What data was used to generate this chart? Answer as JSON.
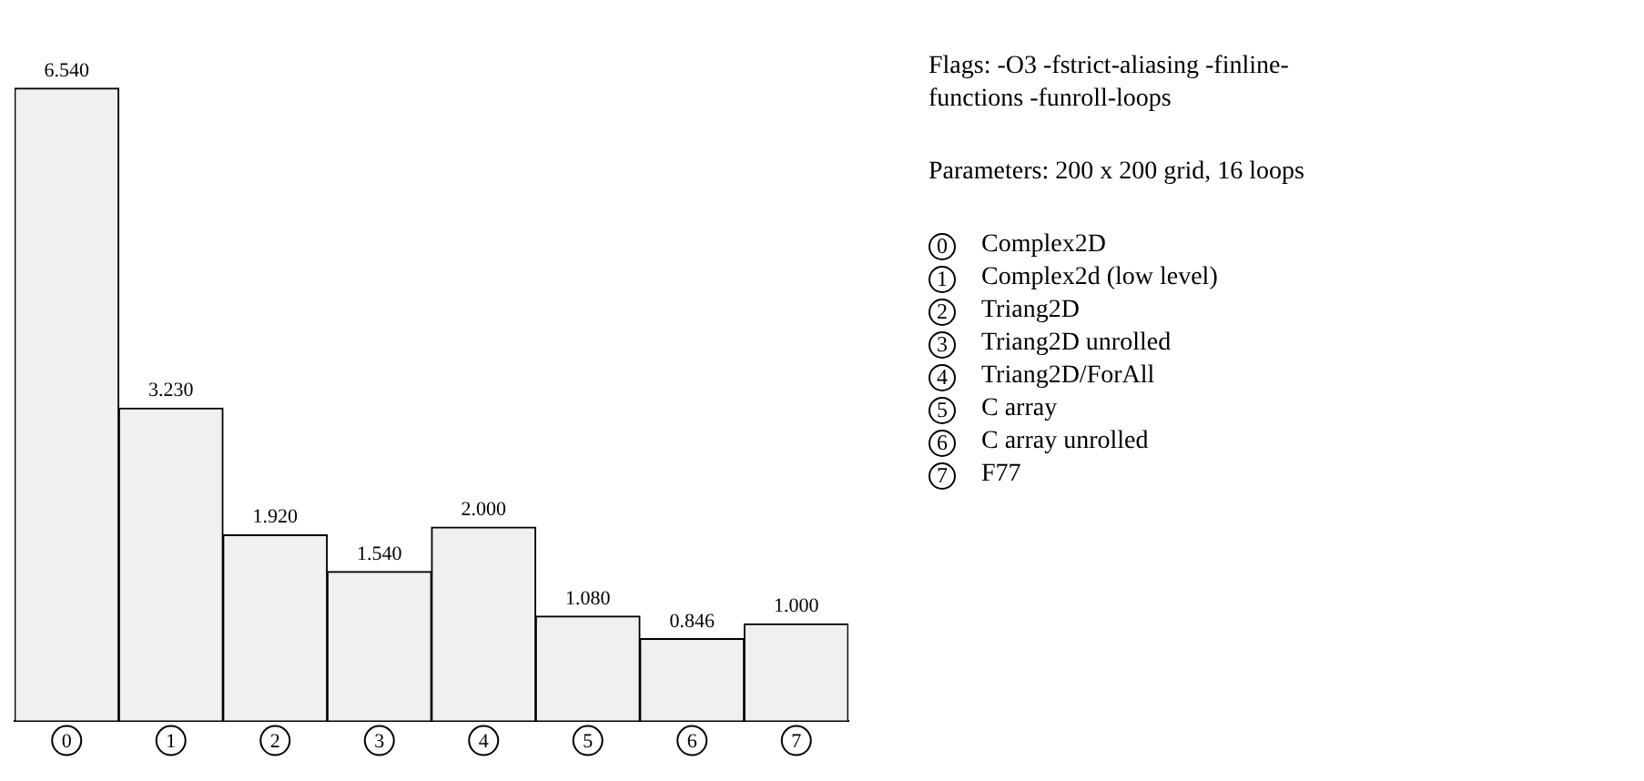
{
  "chart_data": {
    "type": "bar",
    "categories": [
      "0",
      "1",
      "2",
      "3",
      "4",
      "5",
      "6",
      "7"
    ],
    "values": [
      6.54,
      3.23,
      1.92,
      1.54,
      2.0,
      1.08,
      0.846,
      1.0
    ],
    "value_labels": [
      "6.540",
      "3.230",
      "1.920",
      "1.540",
      "2.000",
      "1.080",
      "0.846",
      "1.000"
    ],
    "color": "#f0f0f0",
    "grid": false,
    "legend": false,
    "annotations": [
      "Flags: -O3 -fstrict-aliasing -finline-functions -funroll-loops",
      "Parameters: 200 x 200 grid, 16 loops",
      "Complex2D",
      "Complex2d (low level)",
      "Triang2D",
      "Triang2D unrolled",
      "Triang2D/ForAll",
      "C array",
      "C array unrolled",
      "F77"
    ]
  }
}
